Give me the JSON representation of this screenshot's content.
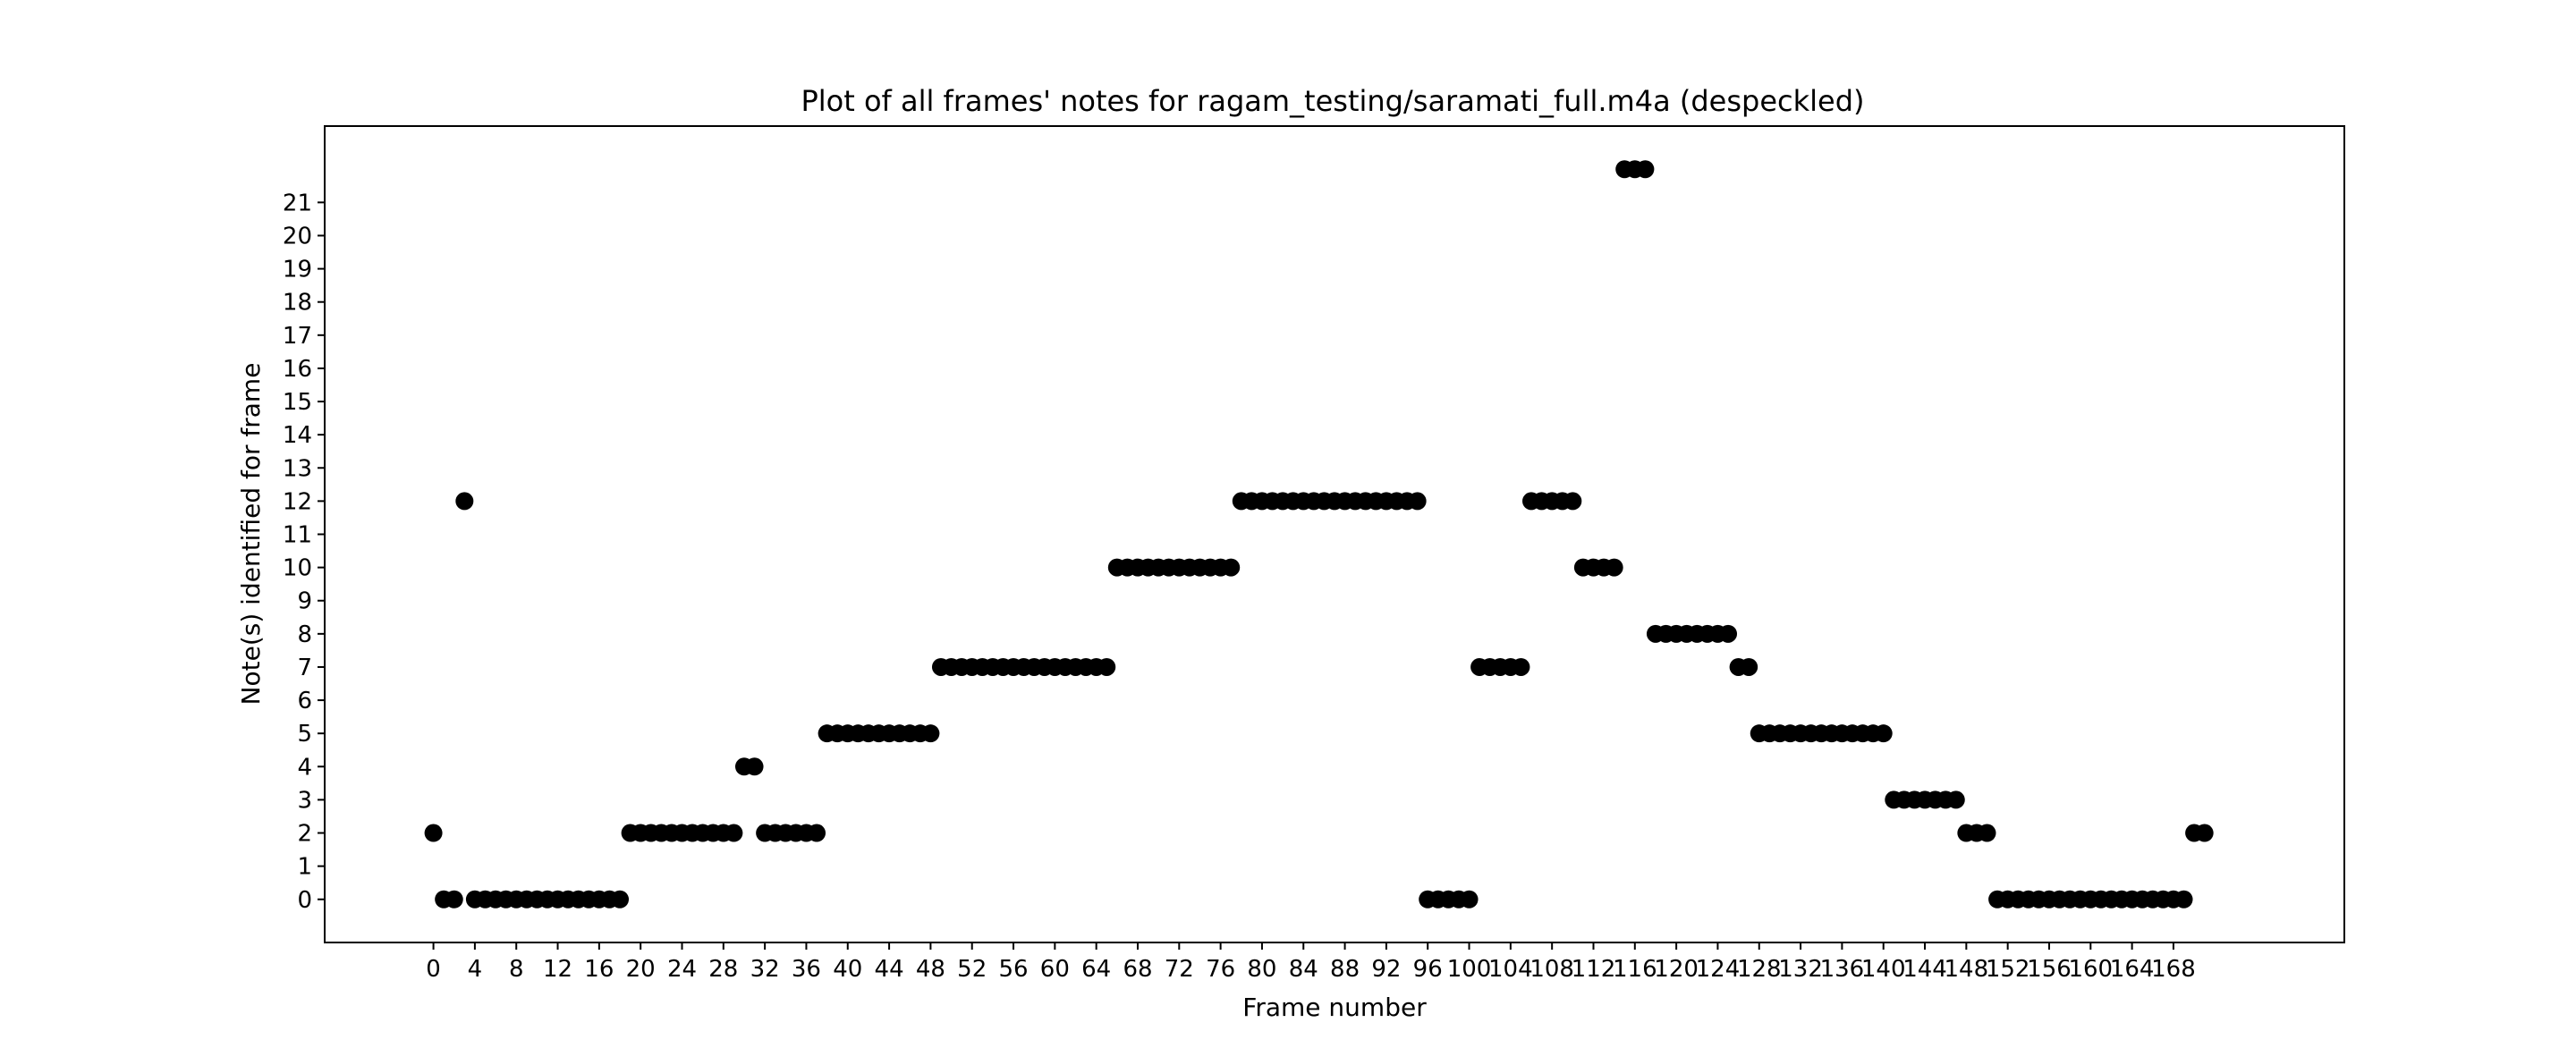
{
  "chart_data": {
    "type": "scatter",
    "title": "Plot of all frames' notes for ragam_testing/saramati_full.m4a (despeckled)",
    "xlabel": "Frame number",
    "ylabel": "Note(s) identified for frame",
    "xlim": [
      -10.5,
      184.5
    ],
    "ylim": [
      -1.3,
      23.3
    ],
    "xticks": [
      0,
      4,
      8,
      12,
      16,
      20,
      24,
      28,
      32,
      36,
      40,
      44,
      48,
      52,
      56,
      60,
      64,
      68,
      72,
      76,
      80,
      84,
      88,
      92,
      96,
      100,
      104,
      108,
      112,
      116,
      120,
      124,
      128,
      132,
      136,
      140,
      144,
      148,
      152,
      156,
      160,
      164,
      168
    ],
    "yticks": [
      0,
      1,
      2,
      3,
      4,
      5,
      6,
      7,
      8,
      9,
      10,
      11,
      12,
      13,
      14,
      15,
      16,
      17,
      18,
      19,
      20,
      21
    ],
    "grid": false,
    "legend": "none",
    "marker_color": "#000000",
    "points": [
      [
        0,
        2
      ],
      [
        1,
        0
      ],
      [
        2,
        0
      ],
      [
        3,
        12
      ],
      [
        4,
        0
      ],
      [
        5,
        0
      ],
      [
        6,
        0
      ],
      [
        7,
        0
      ],
      [
        8,
        0
      ],
      [
        9,
        0
      ],
      [
        10,
        0
      ],
      [
        11,
        0
      ],
      [
        12,
        0
      ],
      [
        13,
        0
      ],
      [
        14,
        0
      ],
      [
        15,
        0
      ],
      [
        16,
        0
      ],
      [
        17,
        0
      ],
      [
        18,
        0
      ],
      [
        19,
        2
      ],
      [
        20,
        2
      ],
      [
        21,
        2
      ],
      [
        22,
        2
      ],
      [
        23,
        2
      ],
      [
        24,
        2
      ],
      [
        25,
        2
      ],
      [
        26,
        2
      ],
      [
        27,
        2
      ],
      [
        28,
        2
      ],
      [
        29,
        2
      ],
      [
        30,
        4
      ],
      [
        31,
        4
      ],
      [
        32,
        2
      ],
      [
        33,
        2
      ],
      [
        34,
        2
      ],
      [
        35,
        2
      ],
      [
        36,
        2
      ],
      [
        37,
        2
      ],
      [
        38,
        5
      ],
      [
        39,
        5
      ],
      [
        40,
        5
      ],
      [
        41,
        5
      ],
      [
        42,
        5
      ],
      [
        43,
        5
      ],
      [
        44,
        5
      ],
      [
        45,
        5
      ],
      [
        46,
        5
      ],
      [
        47,
        5
      ],
      [
        48,
        5
      ],
      [
        49,
        7
      ],
      [
        50,
        7
      ],
      [
        51,
        7
      ],
      [
        52,
        7
      ],
      [
        53,
        7
      ],
      [
        54,
        7
      ],
      [
        55,
        7
      ],
      [
        56,
        7
      ],
      [
        57,
        7
      ],
      [
        58,
        7
      ],
      [
        59,
        7
      ],
      [
        60,
        7
      ],
      [
        61,
        7
      ],
      [
        62,
        7
      ],
      [
        63,
        7
      ],
      [
        64,
        7
      ],
      [
        65,
        7
      ],
      [
        66,
        10
      ],
      [
        67,
        10
      ],
      [
        68,
        10
      ],
      [
        69,
        10
      ],
      [
        70,
        10
      ],
      [
        71,
        10
      ],
      [
        72,
        10
      ],
      [
        73,
        10
      ],
      [
        74,
        10
      ],
      [
        75,
        10
      ],
      [
        76,
        10
      ],
      [
        77,
        10
      ],
      [
        78,
        12
      ],
      [
        79,
        12
      ],
      [
        80,
        12
      ],
      [
        81,
        12
      ],
      [
        82,
        12
      ],
      [
        83,
        12
      ],
      [
        84,
        12
      ],
      [
        85,
        12
      ],
      [
        86,
        12
      ],
      [
        87,
        12
      ],
      [
        88,
        12
      ],
      [
        89,
        12
      ],
      [
        90,
        12
      ],
      [
        91,
        12
      ],
      [
        92,
        12
      ],
      [
        93,
        12
      ],
      [
        94,
        12
      ],
      [
        95,
        12
      ],
      [
        96,
        0
      ],
      [
        97,
        0
      ],
      [
        98,
        0
      ],
      [
        99,
        0
      ],
      [
        100,
        0
      ],
      [
        101,
        7
      ],
      [
        102,
        7
      ],
      [
        103,
        7
      ],
      [
        104,
        7
      ],
      [
        105,
        7
      ],
      [
        106,
        12
      ],
      [
        107,
        12
      ],
      [
        108,
        12
      ],
      [
        109,
        12
      ],
      [
        110,
        12
      ],
      [
        111,
        10
      ],
      [
        112,
        10
      ],
      [
        113,
        10
      ],
      [
        114,
        10
      ],
      [
        115,
        22
      ],
      [
        116,
        22
      ],
      [
        117,
        22
      ],
      [
        118,
        8
      ],
      [
        119,
        8
      ],
      [
        120,
        8
      ],
      [
        121,
        8
      ],
      [
        122,
        8
      ],
      [
        123,
        8
      ],
      [
        124,
        8
      ],
      [
        125,
        8
      ],
      [
        126,
        7
      ],
      [
        127,
        7
      ],
      [
        128,
        5
      ],
      [
        129,
        5
      ],
      [
        130,
        5
      ],
      [
        131,
        5
      ],
      [
        132,
        5
      ],
      [
        133,
        5
      ],
      [
        134,
        5
      ],
      [
        135,
        5
      ],
      [
        136,
        5
      ],
      [
        137,
        5
      ],
      [
        138,
        5
      ],
      [
        139,
        5
      ],
      [
        140,
        5
      ],
      [
        141,
        3
      ],
      [
        142,
        3
      ],
      [
        143,
        3
      ],
      [
        144,
        3
      ],
      [
        145,
        3
      ],
      [
        146,
        3
      ],
      [
        147,
        3
      ],
      [
        148,
        2
      ],
      [
        149,
        2
      ],
      [
        150,
        2
      ],
      [
        151,
        0
      ],
      [
        152,
        0
      ],
      [
        153,
        0
      ],
      [
        154,
        0
      ],
      [
        155,
        0
      ],
      [
        156,
        0
      ],
      [
        157,
        0
      ],
      [
        158,
        0
      ],
      [
        159,
        0
      ],
      [
        160,
        0
      ],
      [
        161,
        0
      ],
      [
        162,
        0
      ],
      [
        163,
        0
      ],
      [
        164,
        0
      ],
      [
        165,
        0
      ],
      [
        166,
        0
      ],
      [
        167,
        0
      ],
      [
        168,
        0
      ],
      [
        169,
        0
      ],
      [
        170,
        2
      ],
      [
        171,
        2
      ]
    ]
  }
}
